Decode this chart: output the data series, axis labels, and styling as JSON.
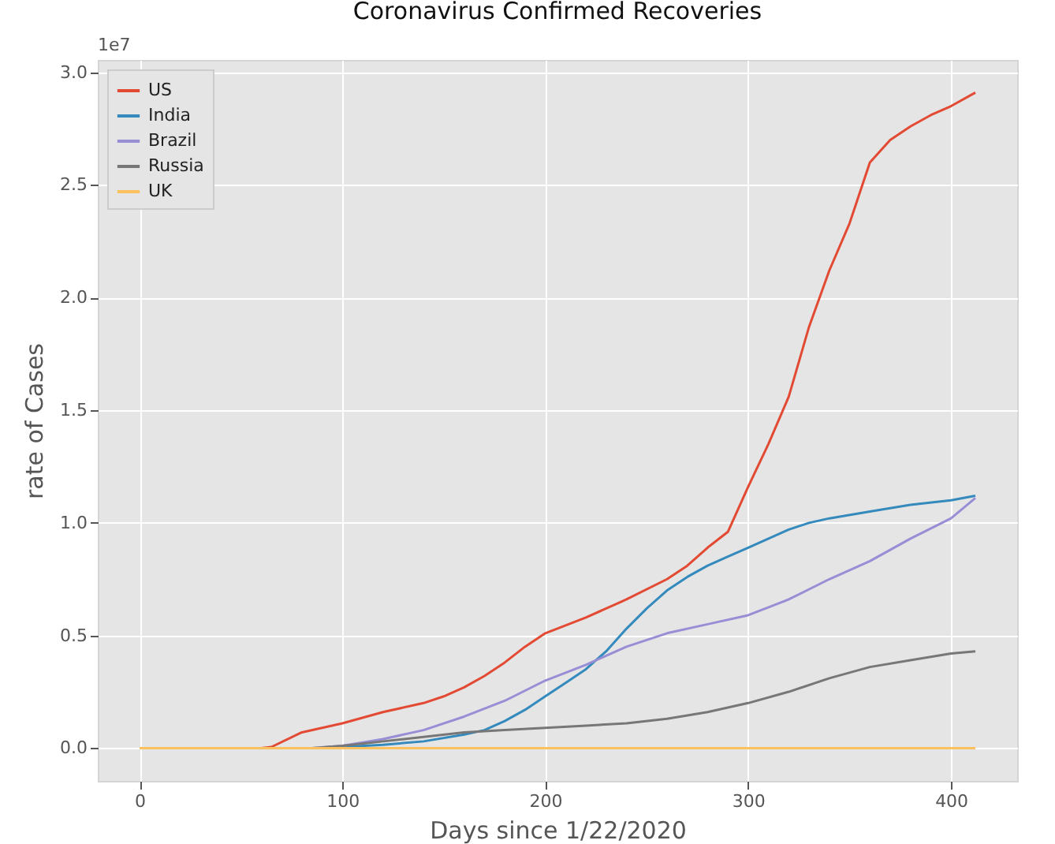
{
  "chart_data": {
    "type": "line",
    "title": "Coronavirus Confirmed Recoveries",
    "xlabel": "Days since 1/22/2020",
    "ylabel": "rate of Cases",
    "annotations": [
      "1e7"
    ],
    "xlim": [
      -20.6,
      432.6
    ],
    "xticks": [
      0,
      100,
      200,
      300,
      400
    ],
    "ylim": [
      -0.1455,
      3.055
    ],
    "yticks": [
      {
        "value": 0,
        "label": "0.0"
      },
      {
        "value": 0.5,
        "label": "0.5"
      },
      {
        "value": 1,
        "label": "1.0"
      },
      {
        "value": 1.5,
        "label": "1.5"
      },
      {
        "value": 2,
        "label": "2.0"
      },
      {
        "value": 2.5,
        "label": "2.5"
      },
      {
        "value": 3,
        "label": "3.0"
      }
    ],
    "grid": true,
    "legend": "top left",
    "marker": "none",
    "line_style": "solid",
    "series": [
      {
        "name": "US",
        "color": "#e24a33",
        "x": [
          0,
          60,
          65,
          80,
          100,
          120,
          140,
          150,
          160,
          170,
          180,
          190,
          200,
          220,
          240,
          260,
          270,
          280,
          290,
          300,
          310,
          320,
          330,
          340,
          350,
          360,
          370,
          380,
          390,
          400,
          412
        ],
        "values": [
          0,
          0,
          0.005,
          0.07,
          0.11,
          0.16,
          0.2,
          0.23,
          0.27,
          0.32,
          0.38,
          0.45,
          0.51,
          0.58,
          0.66,
          0.75,
          0.81,
          0.89,
          0.96,
          1.16,
          1.35,
          1.56,
          1.87,
          2.12,
          2.33,
          2.6,
          2.7,
          2.76,
          2.81,
          2.85,
          2.91
        ]
      },
      {
        "name": "India",
        "color": "#348abd",
        "x": [
          0,
          90,
          100,
          120,
          140,
          160,
          170,
          180,
          190,
          200,
          210,
          220,
          230,
          240,
          250,
          260,
          270,
          280,
          290,
          300,
          310,
          320,
          330,
          340,
          360,
          380,
          400,
          412
        ],
        "values": [
          0,
          0,
          0.005,
          0.015,
          0.03,
          0.06,
          0.08,
          0.12,
          0.17,
          0.23,
          0.29,
          0.35,
          0.43,
          0.53,
          0.62,
          0.7,
          0.76,
          0.81,
          0.85,
          0.89,
          0.93,
          0.97,
          1.0,
          1.02,
          1.05,
          1.08,
          1.1,
          1.12
        ]
      },
      {
        "name": "Brazil",
        "color": "#988ed5",
        "x": [
          0,
          85,
          100,
          120,
          140,
          160,
          180,
          200,
          220,
          240,
          260,
          280,
          300,
          320,
          340,
          360,
          380,
          400,
          412
        ],
        "values": [
          0,
          0,
          0.01,
          0.04,
          0.08,
          0.14,
          0.21,
          0.3,
          0.37,
          0.45,
          0.51,
          0.55,
          0.59,
          0.66,
          0.75,
          0.83,
          0.93,
          1.02,
          1.11
        ]
      },
      {
        "name": "Russia",
        "color": "#777777",
        "x": [
          0,
          85,
          100,
          120,
          140,
          160,
          180,
          200,
          220,
          240,
          260,
          280,
          300,
          320,
          340,
          360,
          380,
          400,
          412
        ],
        "values": [
          0,
          0,
          0.01,
          0.03,
          0.05,
          0.07,
          0.08,
          0.09,
          0.1,
          0.11,
          0.13,
          0.16,
          0.2,
          0.25,
          0.31,
          0.36,
          0.39,
          0.42,
          0.43
        ]
      },
      {
        "name": "UK",
        "color": "#fbc15e",
        "x": [
          0,
          412
        ],
        "values": [
          0,
          0
        ]
      }
    ]
  }
}
